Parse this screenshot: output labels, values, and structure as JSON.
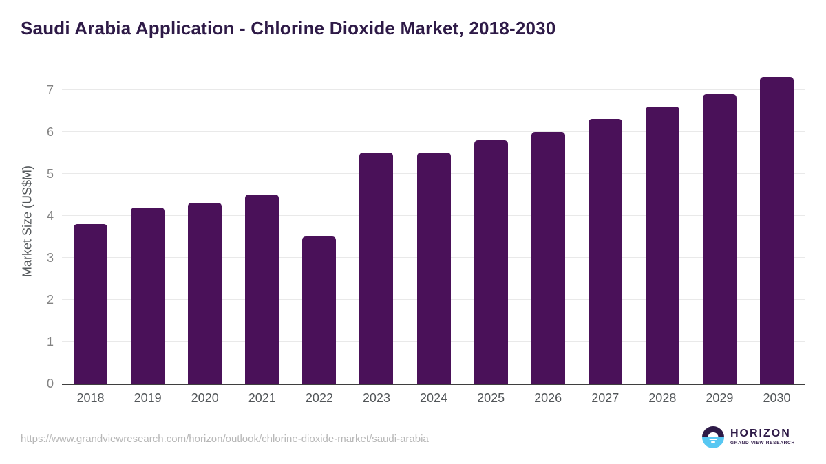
{
  "header": {
    "title": "Saudi Arabia Application - Chlorine Dioxide Market, 2018-2030",
    "title_color": "#2e1a47"
  },
  "chart_data": {
    "type": "bar",
    "categories": [
      "2018",
      "2019",
      "2020",
      "2021",
      "2022",
      "2023",
      "2024",
      "2025",
      "2026",
      "2027",
      "2028",
      "2029",
      "2030"
    ],
    "values": [
      3.8,
      4.2,
      4.3,
      4.5,
      3.5,
      5.5,
      5.5,
      5.8,
      6.0,
      6.3,
      6.6,
      6.9,
      7.3
    ],
    "title": "Saudi Arabia Application - Chlorine Dioxide Market, 2018-2030",
    "xlabel": "",
    "ylabel": "Market Size (US$M)",
    "ylim": [
      0,
      7.5
    ],
    "yticks": [
      0,
      1,
      2,
      3,
      4,
      5,
      6,
      7
    ],
    "grid": "horizontal",
    "legend_position": "none",
    "bar_color": "#4a1159",
    "gridline_color": "#e9e9e9",
    "axis_line_color": "#3f3f3f"
  },
  "footer": {
    "source_url": "https://www.grandviewresearch.com/horizon/outlook/chlorine-dioxide-market/saudi-arabia",
    "logo": {
      "brand": "HORIZON",
      "subbrand": "GRAND VIEW RESEARCH",
      "icon": "horizon-sun-icon",
      "purple": "#2e1a47",
      "blue": "#57c7f2"
    }
  }
}
